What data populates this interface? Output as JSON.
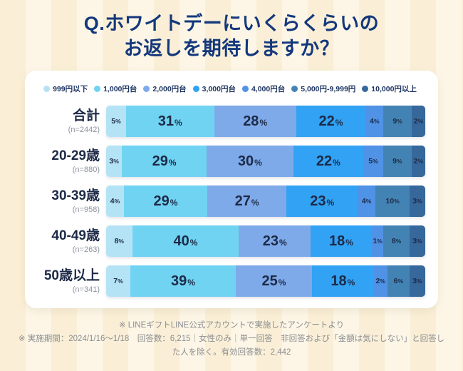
{
  "title": {
    "line1": "Q.ホワイトデーにいくらくらいの",
    "line2": "お返しを期待しますか？"
  },
  "chart_data": {
    "type": "bar",
    "stacked": true,
    "orientation": "horizontal",
    "unit": "%",
    "legend_position": "top",
    "value_suffix": "%",
    "series_labels": [
      "999円以下",
      "1,000円台",
      "2,000円台",
      "3,000円台",
      "4,000円台",
      "5,000円-9,999円",
      "10,000円以上"
    ],
    "series_colors": [
      "#b5e3f6",
      "#70d3f2",
      "#7faae9",
      "#32a2f4",
      "#4f92e6",
      "#4383b4",
      "#36689c"
    ],
    "rows": [
      {
        "label": "合計",
        "n": "(n=2442)",
        "values": [
          5,
          31,
          28,
          22,
          4,
          9,
          2
        ]
      },
      {
        "label": "20-29歳",
        "n": "(n=880)",
        "values": [
          3,
          29,
          30,
          22,
          5,
          9,
          2
        ]
      },
      {
        "label": "30-39歳",
        "n": "(n=958)",
        "values": [
          4,
          29,
          27,
          23,
          4,
          10,
          3
        ]
      },
      {
        "label": "40-49歳",
        "n": "(n=263)",
        "values": [
          8,
          40,
          23,
          18,
          1,
          8,
          3
        ]
      },
      {
        "label": "50歳以上",
        "n": "(n=341)",
        "values": [
          7,
          39,
          25,
          18,
          2,
          6,
          3
        ]
      }
    ],
    "big_label_threshold": 18
  },
  "footer": {
    "line1": "※ LINEギフトLINE公式アカウントで実施したアンケートより",
    "line2": "※ 実施期間：2024/1/16～1/18　回答数：6,215｜女性のみ｜単一回答　非回答および「金額は気にしない」と回答した人を除く。有効回答数：2,442"
  },
  "colors": {
    "title_text": "#14387c",
    "row_label_text": "#1c2a47",
    "background_stripe_dark": "#faefd6",
    "background_stripe_light": "#fdf6e6",
    "card_background": "#ffffff",
    "footnote_text": "#8b8d92"
  }
}
